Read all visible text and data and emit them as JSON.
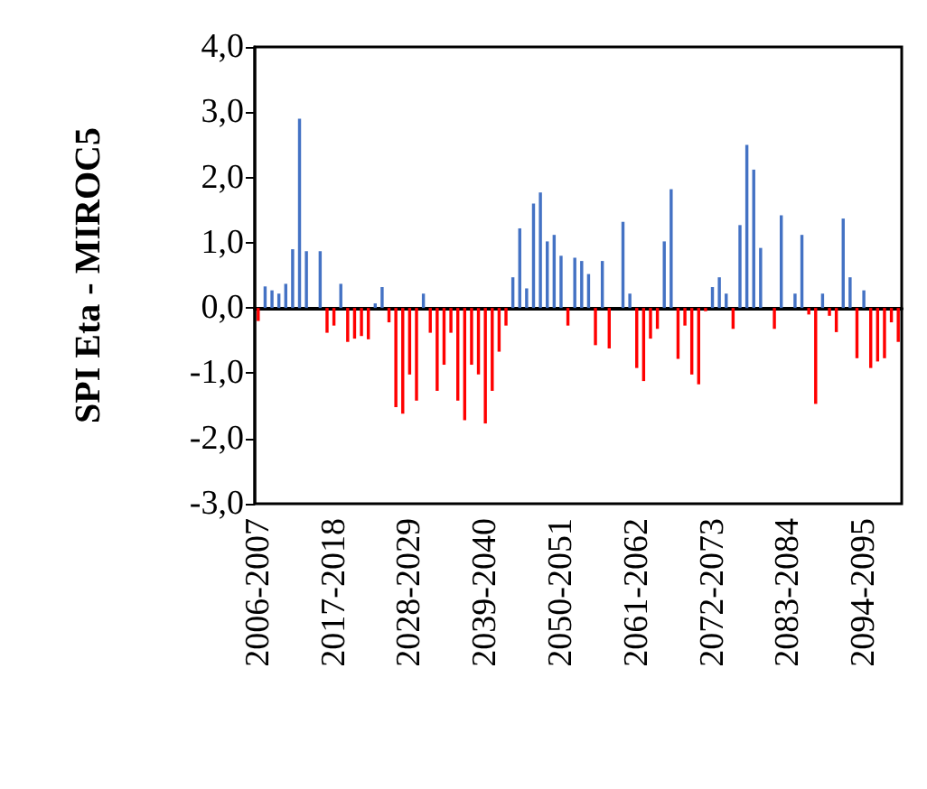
{
  "chart_data": {
    "type": "bar",
    "ylabel": "SPI Eta - MIROC5",
    "categories": [
      "2006-2007",
      null,
      null,
      null,
      null,
      null,
      null,
      null,
      null,
      null,
      null,
      "2017-2018",
      null,
      null,
      null,
      null,
      null,
      null,
      null,
      null,
      null,
      null,
      "2028-2029",
      null,
      null,
      null,
      null,
      null,
      null,
      null,
      null,
      null,
      null,
      "2039-2040",
      null,
      null,
      null,
      null,
      null,
      null,
      null,
      null,
      null,
      null,
      "2050-2051",
      null,
      null,
      null,
      null,
      null,
      null,
      null,
      null,
      null,
      null,
      "2061-2062",
      null,
      null,
      null,
      null,
      null,
      null,
      null,
      null,
      null,
      null,
      "2072-2073",
      null,
      null,
      null,
      null,
      null,
      null,
      null,
      null,
      null,
      null,
      "2083-2084",
      null,
      null,
      null,
      null,
      null,
      null,
      null,
      null,
      null,
      null,
      "2094-2095",
      null,
      null,
      null,
      null,
      null
    ],
    "values": [
      -0.2,
      0.33,
      0.27,
      0.22,
      0.37,
      0.9,
      2.9,
      0.87,
      0,
      0.87,
      -0.38,
      -0.27,
      0.37,
      -0.52,
      -0.47,
      -0.43,
      -0.48,
      0.07,
      0.32,
      -0.22,
      -1.52,
      -1.62,
      -1.02,
      -1.42,
      0.22,
      -0.38,
      -1.27,
      -0.87,
      -0.38,
      -1.42,
      -1.72,
      -0.87,
      -1.02,
      -1.77,
      -1.27,
      -0.67,
      -0.27,
      0.47,
      1.22,
      0.3,
      1.6,
      1.77,
      1.02,
      1.12,
      0.8,
      -0.27,
      0.77,
      0.72,
      0.52,
      -0.57,
      0.72,
      -0.62,
      0,
      1.32,
      0.22,
      -0.92,
      -1.12,
      -0.47,
      -0.32,
      1.02,
      1.82,
      -0.78,
      -0.27,
      -1.02,
      -1.17,
      -0.05,
      0.32,
      0.47,
      0.22,
      -0.32,
      1.27,
      2.5,
      2.12,
      0.92,
      0,
      -0.32,
      1.42,
      0,
      0.22,
      1.12,
      -0.1,
      -1.47,
      0.22,
      -0.12,
      -0.37,
      1.37,
      0.47,
      -0.77,
      0.27,
      -0.92,
      -0.82,
      -0.77,
      -0.22,
      -0.52
    ],
    "colors": [
      "#ff0000",
      "#4472c4",
      "#4472c4",
      "#4472c4",
      "#4472c4",
      "#4472c4",
      "#4472c4",
      "#4472c4",
      "#4472c4",
      "#4472c4",
      "#ff0000",
      "#ff0000",
      "#4472c4",
      "#ff0000",
      "#ff0000",
      "#ff0000",
      "#ff0000",
      "#4472c4",
      "#4472c4",
      "#ff0000",
      "#ff0000",
      "#ff0000",
      "#ff0000",
      "#ff0000",
      "#4472c4",
      "#ff0000",
      "#ff0000",
      "#ff0000",
      "#ff0000",
      "#ff0000",
      "#ff0000",
      "#ff0000",
      "#ff0000",
      "#ff0000",
      "#ff0000",
      "#ff0000",
      "#ff0000",
      "#4472c4",
      "#4472c4",
      "#4472c4",
      "#4472c4",
      "#4472c4",
      "#4472c4",
      "#4472c4",
      "#4472c4",
      "#ff0000",
      "#4472c4",
      "#4472c4",
      "#4472c4",
      "#ff0000",
      "#4472c4",
      "#ff0000",
      "#4472c4",
      "#4472c4",
      "#4472c4",
      "#ff0000",
      "#ff0000",
      "#ff0000",
      "#ff0000",
      "#4472c4",
      "#4472c4",
      "#ff0000",
      "#ff0000",
      "#ff0000",
      "#ff0000",
      "#ff0000",
      "#4472c4",
      "#4472c4",
      "#4472c4",
      "#ff0000",
      "#4472c4",
      "#4472c4",
      "#4472c4",
      "#4472c4",
      "#4472c4",
      "#ff0000",
      "#4472c4",
      "#4472c4",
      "#4472c4",
      "#4472c4",
      "#ff0000",
      "#ff0000",
      "#4472c4",
      "#ff0000",
      "#ff0000",
      "#4472c4",
      "#4472c4",
      "#ff0000",
      "#4472c4",
      "#ff0000",
      "#ff0000",
      "#ff0000",
      "#ff0000",
      "#ff0000"
    ],
    "ylim": [
      -3,
      4
    ],
    "yticks": [
      {
        "value": -3,
        "label": "-3,0"
      },
      {
        "value": -2,
        "label": "-2,0"
      },
      {
        "value": -1,
        "label": "-1,0"
      },
      {
        "value": 0,
        "label": "0,0"
      },
      {
        "value": 1,
        "label": "1,0"
      },
      {
        "value": 2,
        "label": "2,0"
      },
      {
        "value": 3,
        "label": "3,0"
      },
      {
        "value": 4,
        "label": "4,0"
      }
    ]
  }
}
